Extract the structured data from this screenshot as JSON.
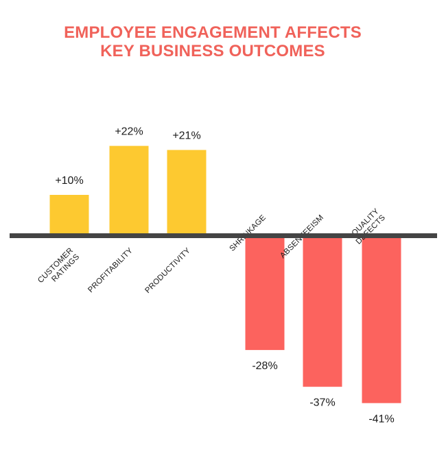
{
  "title_lines": [
    "EMPLOYEE ENGAGEMENT AFFECTS",
    "KEY BUSINESS OUTCOMES"
  ],
  "colors": {
    "title": "#f0625a",
    "positive": "#fdc930",
    "negative": "#fc635e",
    "baseline": "#444444",
    "text": "#1a1a1a"
  },
  "chart_data": {
    "type": "bar",
    "title": "EMPLOYEE ENGAGEMENT AFFECTS KEY BUSINESS OUTCOMES",
    "categories": [
      [
        "CUSTOMER",
        "RATINGS"
      ],
      [
        "PROFITABILITY"
      ],
      [
        "PRODUCTIVITY"
      ],
      [
        "SHRINKAGE"
      ],
      [
        "ABSENTEEISM"
      ],
      [
        "QUALITY",
        "DEFECTS"
      ]
    ],
    "values": [
      10,
      22,
      21,
      -28,
      -37,
      -41
    ],
    "value_labels": [
      "+10%",
      "+22%",
      "+21%",
      "-28%",
      "-37%",
      "-41%"
    ],
    "unit": "%",
    "ylim": [
      -45,
      25
    ],
    "grid": false,
    "legend": "none"
  }
}
